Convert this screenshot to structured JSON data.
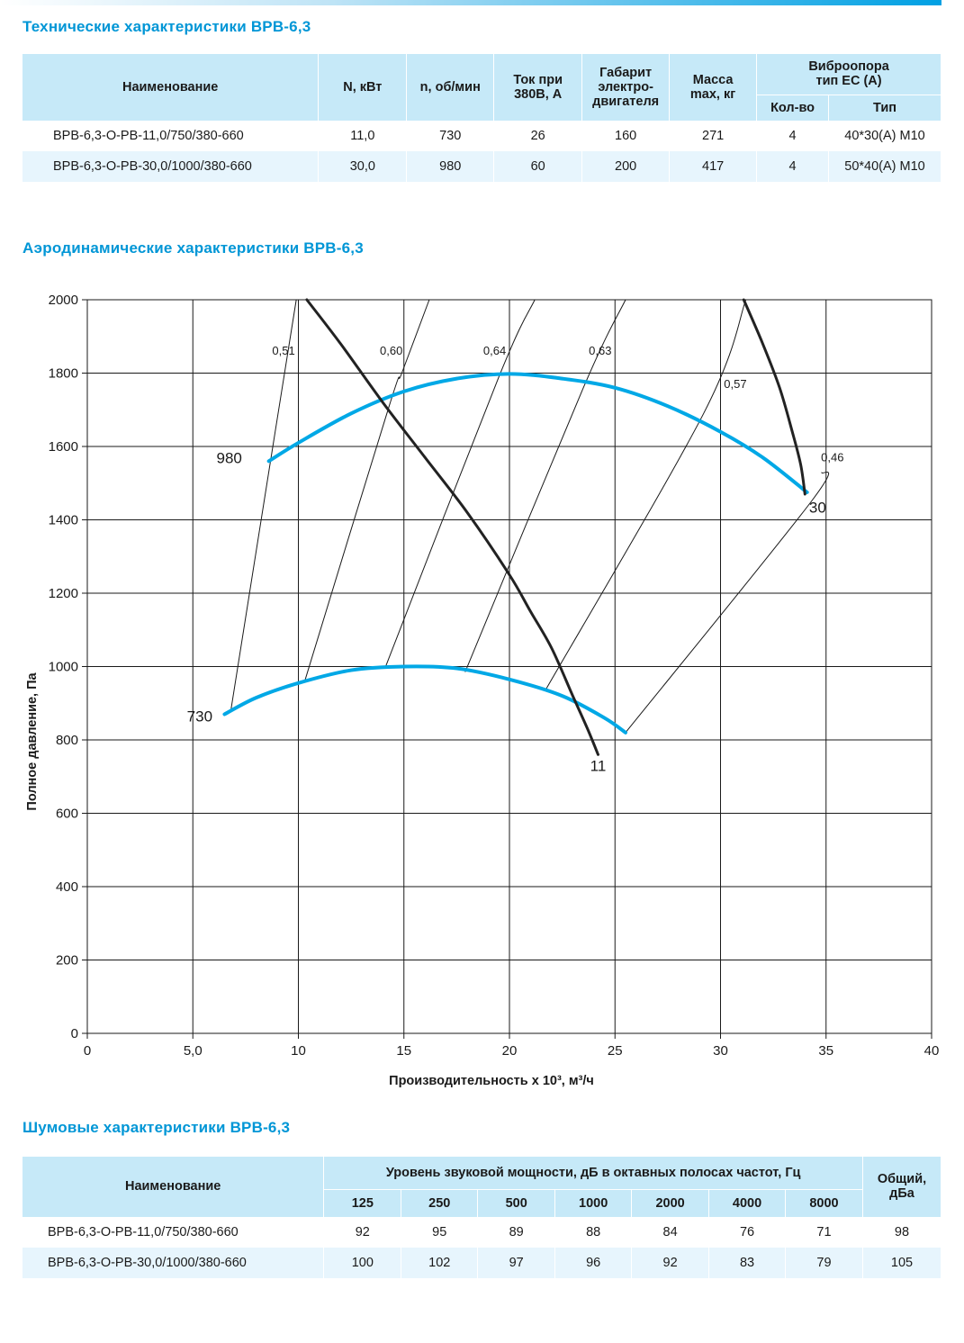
{
  "spec_section": {
    "title": "Технические характеристики ВРВ-6,3",
    "headers": {
      "name": "Наименование",
      "power": "N, кВт",
      "rpm": "n, об/мин",
      "current_1": "Ток при",
      "current_2": "380В, А",
      "motor_1": "Габарит",
      "motor_2": "электро-",
      "motor_3": "двигателя",
      "mass_1": "Масса",
      "mass_2": "max, кг",
      "vibro_1": "Виброопора",
      "vibro_2": "тип ЕС (А)",
      "qty": "Кол-во",
      "type": "Тип"
    },
    "rows": [
      {
        "name": "ВРВ-6,3-О-РВ-11,0/750/380-660",
        "power": "11,0",
        "rpm": "730",
        "current": "26",
        "motor": "160",
        "mass": "271",
        "qty": "4",
        "type": "40*30(А) М10"
      },
      {
        "name": "ВРВ-6,3-О-РВ-30,0/1000/380-660",
        "power": "30,0",
        "rpm": "980",
        "current": "60",
        "motor": "200",
        "mass": "417",
        "qty": "4",
        "type": "50*40(А) М10"
      }
    ]
  },
  "aero_section": {
    "title": "Аэродинамические характеристики ВРВ-6,3"
  },
  "chart_data": {
    "type": "line",
    "xlabel": "Производительность х 10³, м³/ч",
    "ylabel": "Полное давление, Па",
    "xlim": [
      0,
      40
    ],
    "ylim": [
      0,
      2000
    ],
    "x_ticks": [
      "0",
      "5,0",
      "10",
      "15",
      "20",
      "25",
      "30",
      "35",
      "40"
    ],
    "y_ticks": [
      "0",
      "200",
      "400",
      "600",
      "800",
      "1000",
      "1200",
      "1400",
      "1600",
      "1800",
      "2000"
    ],
    "grid": true,
    "series": [
      {
        "name": "980",
        "color": "#00a8e6",
        "points": [
          [
            8.6,
            1560
          ],
          [
            10,
            1610
          ],
          [
            12.5,
            1690
          ],
          [
            15,
            1750
          ],
          [
            17.5,
            1785
          ],
          [
            20,
            1798
          ],
          [
            22.5,
            1785
          ],
          [
            25,
            1760
          ],
          [
            27.5,
            1710
          ],
          [
            30,
            1640
          ],
          [
            32,
            1570
          ],
          [
            34.1,
            1475
          ]
        ]
      },
      {
        "name": "730",
        "color": "#00a8e6",
        "points": [
          [
            6.5,
            870
          ],
          [
            8,
            915
          ],
          [
            10,
            955
          ],
          [
            12.5,
            990
          ],
          [
            15,
            1000
          ],
          [
            17.5,
            995
          ],
          [
            20,
            965
          ],
          [
            22.5,
            920
          ],
          [
            24.5,
            860
          ],
          [
            25.5,
            820
          ]
        ]
      },
      {
        "name": "11",
        "color": "#222222",
        "points": [
          [
            10.4,
            2000
          ],
          [
            12,
            1880
          ],
          [
            14,
            1720
          ],
          [
            16,
            1570
          ],
          [
            18,
            1420
          ],
          [
            20,
            1250
          ],
          [
            21,
            1150
          ],
          [
            22,
            1050
          ],
          [
            23,
            920
          ],
          [
            23.7,
            830
          ],
          [
            24.2,
            760
          ]
        ]
      },
      {
        "name": "30",
        "color": "#222222",
        "points": [
          [
            31.1,
            2000
          ],
          [
            32,
            1880
          ],
          [
            32.8,
            1760
          ],
          [
            33.4,
            1640
          ],
          [
            33.8,
            1550
          ],
          [
            34,
            1470
          ]
        ]
      }
    ],
    "efficiency_lines": [
      {
        "label": "0,51",
        "points": [
          [
            6.8,
            880
          ],
          [
            8.9,
            1640
          ],
          [
            9.9,
            2000
          ]
        ]
      },
      {
        "label": "0,60",
        "points": [
          [
            10.3,
            960
          ],
          [
            14.3,
            1710
          ],
          [
            14.9,
            1800
          ],
          [
            16.2,
            2000
          ]
        ]
      },
      {
        "label": "0,64",
        "points": [
          [
            14.1,
            995
          ],
          [
            19.5,
            1790
          ],
          [
            21.2,
            2000
          ]
        ]
      },
      {
        "label": "0,63",
        "points": [
          [
            17.9,
            985
          ],
          [
            23.5,
            1760
          ],
          [
            25.5,
            2000
          ]
        ]
      },
      {
        "label": "0,57",
        "points": [
          [
            21.7,
            935
          ],
          [
            29.2,
            1690
          ],
          [
            31.2,
            2000
          ]
        ]
      },
      {
        "label": "0,46",
        "points": [
          [
            25.5,
            820
          ],
          [
            34.3,
            1450
          ],
          [
            34.8,
            1530
          ]
        ]
      }
    ],
    "curve_labels": [
      "980",
      "730",
      "11",
      "30"
    ]
  },
  "noise_section": {
    "title": "Шумовые характеристики ВРВ-6,3",
    "headers": {
      "name": "Наименование",
      "level": "Уровень звуковой мощности, дБ в октавных полосах частот, Гц",
      "total_1": "Общий,",
      "total_2": "дБа"
    },
    "freqs": [
      "125",
      "250",
      "500",
      "1000",
      "2000",
      "4000",
      "8000"
    ],
    "rows": [
      {
        "name": "ВРВ-6,3-О-РВ-11,0/750/380-660",
        "v": [
          "92",
          "95",
          "89",
          "88",
          "84",
          "76",
          "71"
        ],
        "total": "98"
      },
      {
        "name": "ВРВ-6,3-О-РВ-30,0/1000/380-660",
        "v": [
          "100",
          "102",
          "97",
          "96",
          "92",
          "83",
          "79"
        ],
        "total": "105"
      }
    ]
  }
}
